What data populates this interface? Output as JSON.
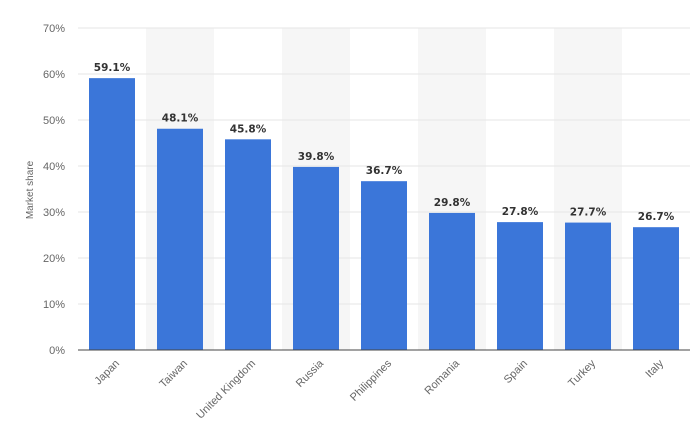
{
  "chart_data": {
    "type": "bar",
    "categories": [
      "Japan",
      "Taiwan",
      "United Kingdom",
      "Russia",
      "Philippines",
      "Romania",
      "Spain",
      "Turkey",
      "Italy"
    ],
    "values": [
      59.1,
      48.1,
      45.8,
      39.8,
      36.7,
      29.8,
      27.8,
      27.7,
      26.7
    ],
    "value_labels": [
      "59.1%",
      "48.1%",
      "45.8%",
      "39.8%",
      "36.7%",
      "29.8%",
      "27.8%",
      "27.7%",
      "26.7%"
    ],
    "title": "",
    "xlabel": "",
    "ylabel": "Market share",
    "ylim": [
      0,
      70
    ],
    "yticks": [
      0,
      10,
      20,
      30,
      40,
      50,
      60,
      70
    ],
    "ytick_labels": [
      "0%",
      "10%",
      "20%",
      "30%",
      "40%",
      "50%",
      "60%",
      "70%"
    ],
    "grid": true,
    "legend": "none",
    "colors": {
      "bar": "#3b76d9",
      "band": "#f6f6f6",
      "grid": "#e6e6e6",
      "axis": "#444444"
    }
  }
}
